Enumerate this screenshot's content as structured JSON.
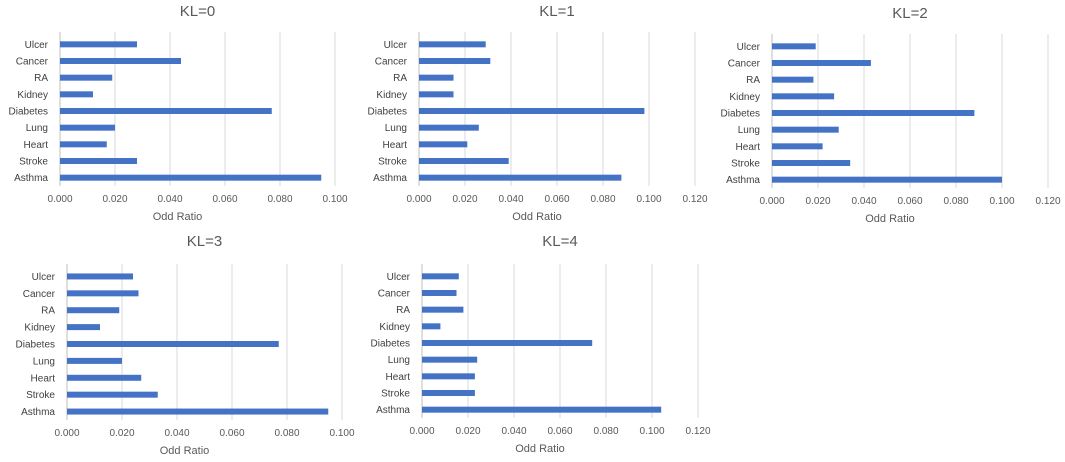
{
  "colors": {
    "bar": "#4472C4"
  },
  "chart_data": [
    {
      "type": "bar",
      "orientation": "horizontal",
      "title": "KL=0",
      "xlabel": "Odd Ratio",
      "categories": [
        "Ulcer",
        "Cancer",
        "RA",
        "Kidney",
        "Diabetes",
        "Lung",
        "Heart",
        "Stroke",
        "Asthma"
      ],
      "values": [
        0.028,
        0.044,
        0.019,
        0.012,
        0.077,
        0.02,
        0.017,
        0.028,
        0.095
      ],
      "xlim": [
        0,
        0.1
      ],
      "ticks": [
        "0.000",
        "0.020",
        "0.040",
        "0.060",
        "0.080",
        "0.100"
      ],
      "grid": true
    },
    {
      "type": "bar",
      "orientation": "horizontal",
      "title": "KL=1",
      "xlabel": "Odd Ratio",
      "categories": [
        "Ulcer",
        "Cancer",
        "RA",
        "Kidney",
        "Diabetes",
        "Lung",
        "Heart",
        "Stroke",
        "Asthma"
      ],
      "values": [
        0.029,
        0.031,
        0.015,
        0.015,
        0.098,
        0.026,
        0.021,
        0.039,
        0.088
      ],
      "xlim": [
        0,
        0.12
      ],
      "ticks": [
        "0.000",
        "0.020",
        "0.040",
        "0.060",
        "0.080",
        "0.100",
        "0.120"
      ],
      "grid": true
    },
    {
      "type": "bar",
      "orientation": "horizontal",
      "title": "KL=2",
      "xlabel": "Odd Ratio",
      "categories": [
        "Ulcer",
        "Cancer",
        "RA",
        "Kidney",
        "Diabetes",
        "Lung",
        "Heart",
        "Stroke",
        "Asthma"
      ],
      "values": [
        0.019,
        0.043,
        0.018,
        0.027,
        0.088,
        0.029,
        0.022,
        0.034,
        0.1
      ],
      "xlim": [
        0,
        0.12
      ],
      "ticks": [
        "0.000",
        "0.020",
        "0.040",
        "0.060",
        "0.080",
        "0.100",
        "0.120"
      ],
      "grid": true
    },
    {
      "type": "bar",
      "orientation": "horizontal",
      "title": "KL=3",
      "xlabel": "Odd Ratio",
      "categories": [
        "Ulcer",
        "Cancer",
        "RA",
        "Kidney",
        "Diabetes",
        "Lung",
        "Heart",
        "Stroke",
        "Asthma"
      ],
      "values": [
        0.024,
        0.026,
        0.019,
        0.012,
        0.077,
        0.02,
        0.027,
        0.033,
        0.095
      ],
      "xlim": [
        0,
        0.1
      ],
      "ticks": [
        "0.000",
        "0.020",
        "0.040",
        "0.060",
        "0.080",
        "0.100"
      ],
      "grid": true
    },
    {
      "type": "bar",
      "orientation": "horizontal",
      "title": "KL=4",
      "xlabel": "Odd Ratio",
      "categories": [
        "Ulcer",
        "Cancer",
        "RA",
        "Kidney",
        "Diabetes",
        "Lung",
        "Heart",
        "Stroke",
        "Asthma"
      ],
      "values": [
        0.016,
        0.015,
        0.018,
        0.008,
        0.074,
        0.024,
        0.023,
        0.023,
        0.104
      ],
      "xlim": [
        0,
        0.12
      ],
      "ticks": [
        "0.000",
        "0.020",
        "0.040",
        "0.060",
        "0.080",
        "0.100",
        "0.120"
      ],
      "grid": true
    }
  ]
}
